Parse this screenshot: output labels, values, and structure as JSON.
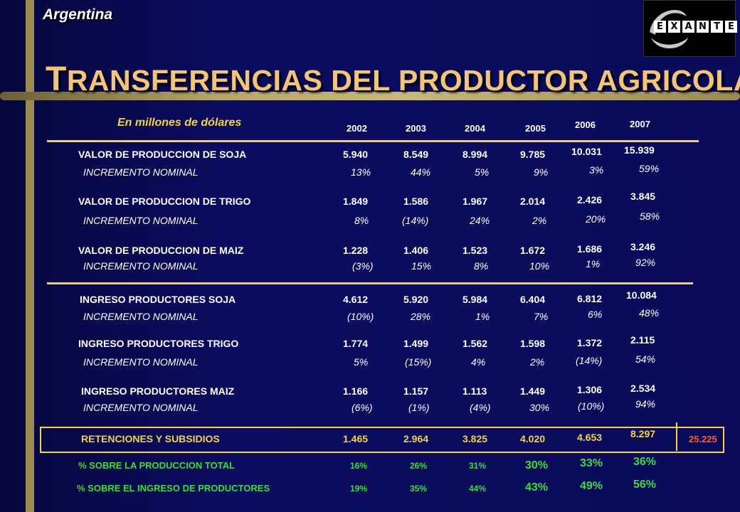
{
  "country": "Argentina",
  "title_first_letter": "T",
  "title_rest": "RANSFERENCIAS DEL PRODUCTOR AGRICOLA",
  "subtitle": "En millones de dólares",
  "logo_letters": [
    "E",
    "X",
    "A",
    "N",
    "T",
    "E"
  ],
  "years": [
    "2002",
    "2003",
    "2004",
    "2005",
    "2006",
    "2007"
  ],
  "rows": {
    "soja_val": {
      "label": "VALOR DE PRODUCCION DE SOJA",
      "values": [
        "5.940",
        "8.549",
        "8.994",
        "9.785",
        "10.031",
        "15.939"
      ]
    },
    "soja_inc": {
      "label": "INCREMENTO NOMINAL",
      "values": [
        "13%",
        "44%",
        "5%",
        "9%",
        "3%",
        "59%"
      ]
    },
    "trigo_val": {
      "label": "VALOR DE PRODUCCION DE TRIGO",
      "values": [
        "1.849",
        "1.586",
        "1.967",
        "2.014",
        "2.426",
        "3.845"
      ]
    },
    "trigo_inc": {
      "label": "INCREMENTO NOMINAL",
      "values": [
        "8%",
        "(14%)",
        "24%",
        "2%",
        "20%",
        "58%"
      ]
    },
    "maiz_val": {
      "label": "VALOR DE PRODUCCION DE MAIZ",
      "values": [
        "1.228",
        "1.406",
        "1.523",
        "1.672",
        "1.686",
        "3.246"
      ]
    },
    "maiz_inc": {
      "label": "INCREMENTO NOMINAL",
      "values": [
        "(3%)",
        "15%",
        "8%",
        "10%",
        "1%",
        "92%"
      ]
    },
    "ing_soja": {
      "label": "INGRESO PRODUCTORES SOJA",
      "values": [
        "4.612",
        "5.920",
        "5.984",
        "6.404",
        "6.812",
        "10.084"
      ]
    },
    "ing_soja_inc": {
      "label": "INCREMENTO NOMINAL",
      "values": [
        "(10%)",
        "28%",
        "1%",
        "7%",
        "6%",
        "48%"
      ]
    },
    "ing_trigo": {
      "label": "INGRESO PRODUCTORES TRIGO",
      "values": [
        "1.774",
        "1.499",
        "1.562",
        "1.598",
        "1.372",
        "2.115"
      ]
    },
    "ing_trigo_inc": {
      "label": "INCREMENTO NOMINAL",
      "values": [
        "5%",
        "(15%)",
        "4%",
        "2%",
        "(14%)",
        "54%"
      ]
    },
    "ing_maiz": {
      "label": "INGRESO PRODUCTORES MAIZ",
      "values": [
        "1.166",
        "1.157",
        "1.113",
        "1.449",
        "1.306",
        "2.534"
      ]
    },
    "ing_maiz_inc": {
      "label": "INCREMENTO NOMINAL",
      "values": [
        "(6%)",
        "(1%)",
        "(4%)",
        "30%",
        "(10%)",
        "94%"
      ]
    },
    "retenciones": {
      "label": "RETENCIONES Y SUBSIDIOS",
      "values": [
        "1.465",
        "2.964",
        "3.825",
        "4.020",
        "4.653",
        "8.297"
      ],
      "total": "25.225"
    },
    "pct_prod": {
      "label": "% SOBRE LA PRODUCCION TOTAL",
      "values": [
        "16%",
        "26%",
        "31%",
        "30%",
        "33%",
        "36%"
      ]
    },
    "pct_ing": {
      "label": "% SOBRE EL INGRESO DE PRODUCTORES",
      "values": [
        "19%",
        "35%",
        "44%",
        "43%",
        "49%",
        "56%"
      ]
    }
  },
  "colors": {
    "background": "#0b0b5a",
    "accent_gold": "#f3d34a",
    "title": "#f3c57a",
    "green": "#3cdc3c",
    "total": "#ff5a2a"
  }
}
